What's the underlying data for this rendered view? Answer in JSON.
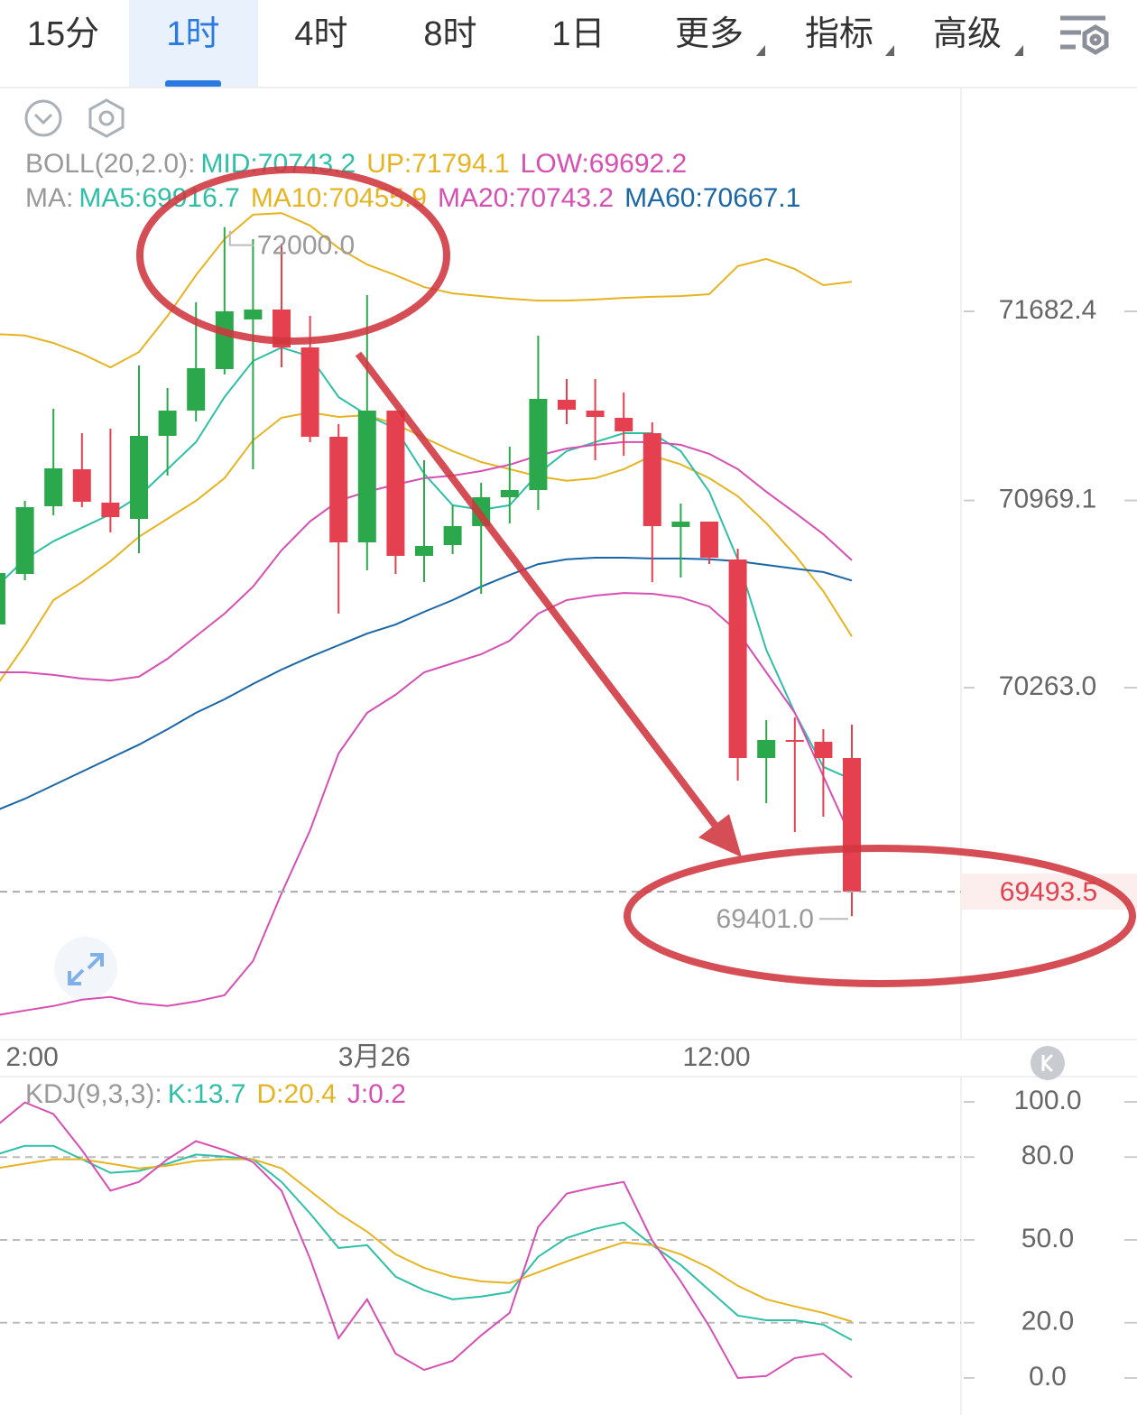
{
  "tabs": {
    "items": [
      "15分",
      "1时",
      "4时",
      "8时",
      "1日",
      "更多",
      "指标",
      "高级"
    ],
    "selected": 1
  },
  "chart_data": [
    {
      "type": "candlestick",
      "categories": [
        null,
        "2:00",
        null,
        null,
        null,
        null,
        null,
        null,
        null,
        null,
        null,
        null,
        null,
        "3月26",
        null,
        null,
        null,
        null,
        null,
        null,
        null,
        null,
        null,
        null,
        null,
        "12:00",
        null,
        null,
        null,
        null,
        null
      ],
      "open": [
        70501.3,
        70691.9,
        70947.2,
        71086.7,
        70960.8,
        70899.5,
        71212.7,
        71308.0,
        71464.5,
        71651.8,
        71689.2,
        71546.2,
        71209.3,
        70811.0,
        71308.0,
        70760.0,
        70800.8,
        70872.3,
        70981.2,
        71008.4,
        71348.8,
        71308.0,
        71280.7,
        71222.9,
        70868.9,
        70889.3,
        70746.3,
        69997.5,
        70065.6,
        70058.8,
        69997.5
      ],
      "high": [
        70695.3,
        70967.6,
        71314.8,
        71222.9,
        71239.9,
        71478.2,
        71393.1,
        71716.4,
        72000.0,
        71954.7,
        71937.7,
        71665.4,
        71256.9,
        71743.7,
        71308.0,
        71120.8,
        70950.6,
        71035.7,
        71171.8,
        71590.5,
        71427.1,
        71427.1,
        71376.0,
        71263.7,
        70957.4,
        70889.3,
        70787.2,
        70140.5,
        70150.7,
        70106.4,
        70123.5
      ],
      "low": [
        70501.3,
        70668.1,
        70913.1,
        70943.7,
        70848.5,
        70770.2,
        71062.9,
        71267.1,
        71444.1,
        71086.7,
        71471.4,
        71188.8,
        70542.1,
        70705.5,
        70691.9,
        70661.2,
        70766.8,
        70617.0,
        70882.5,
        70933.6,
        71256.9,
        71120.8,
        71137.8,
        70661.2,
        70678.3,
        70729.3,
        69912.4,
        69827.3,
        69718.4,
        69776.3,
        69401.0
      ],
      "close": [
        70695.3,
        70943.7,
        71090.1,
        70964.2,
        70906.3,
        71212.7,
        71308.0,
        71468.0,
        71682.4,
        71689.2,
        71546.2,
        71209.3,
        70811.0,
        71308.0,
        70760.0,
        70797.4,
        70872.3,
        70981.2,
        71008.4,
        71352.2,
        71311.4,
        71284.1,
        71229.7,
        70872.3,
        70889.3,
        70753.2,
        69997.5,
        70065.6,
        70058.8,
        69997.5,
        69493.5
      ],
      "up_color": "#2ca84c",
      "down_color": "#e5404f",
      "series": [
        {
          "color": "#e6b422",
          "values": [
            71597,
            71591,
            71563,
            71522,
            71471,
            71529,
            71665,
            71819,
            71955,
            72047,
            72053,
            72006,
            71921,
            71859,
            71819,
            71774,
            71750,
            71740,
            71730,
            71723,
            71723,
            71727,
            71733,
            71737,
            71740,
            71747,
            71853,
            71880,
            71842,
            71781,
            71794.1
          ]
        },
        {
          "color": "#e6b422",
          "values": [
            70270,
            70423,
            70593,
            70661,
            70740,
            70832,
            70900,
            70968,
            71053,
            71196,
            71281,
            71301,
            71284,
            71291,
            71257,
            71206,
            71155,
            71114,
            71087,
            71060,
            71043,
            71053,
            71087,
            71138,
            71105,
            71053,
            70985,
            70883,
            70764,
            70627,
            70455.9
          ]
        },
        {
          "color": "#2fbfa7",
          "values": [
            70644,
            70747,
            70815,
            70866,
            70917,
            70985,
            71087,
            71189,
            71359,
            71495,
            71546,
            71512,
            71359,
            71291,
            71240,
            71070,
            70951,
            70934,
            70951,
            71070,
            71155,
            71189,
            71223,
            71223,
            71155,
            71002,
            70747,
            70406,
            70168,
            69964,
            69916.7
          ]
        },
        {
          "color": "#d64fb3",
          "values": [
            70321,
            70321,
            70311,
            70297,
            70290,
            70304,
            70372,
            70457,
            70542,
            70644,
            70781,
            70890,
            70968,
            71002,
            71029,
            71053,
            71063,
            71080,
            71104,
            71138,
            71165,
            71179,
            71189,
            71189,
            71179,
            71145,
            71087,
            71002,
            70923,
            70842,
            70743.2
          ]
        },
        {
          "color": "#d64fb3",
          "values": [
            69027,
            69045,
            69062,
            69086,
            69096,
            69072,
            69062,
            69079,
            69103,
            69232,
            69487,
            69725,
            70015,
            70168,
            70236,
            70321,
            70355,
            70389,
            70440,
            70542,
            70593,
            70610,
            70620,
            70617,
            70603,
            70569,
            70474,
            70321,
            70168,
            69929,
            69692.2
          ]
        },
        {
          "color": "#1a66a6",
          "values": [
            69800,
            69844,
            69895,
            69946,
            69997,
            70048,
            70106,
            70168,
            70219,
            70277,
            70331,
            70379,
            70423,
            70467,
            70501,
            70549,
            70593,
            70644,
            70688,
            70729,
            70747,
            70753,
            70753,
            70750,
            70750,
            70747,
            70740,
            70726,
            70712,
            70699,
            70667.1
          ]
        }
      ],
      "legend": [
        {
          "label": "BOLL(20,2.0):",
          "items": [
            {
              "text": "MID:70743.2",
              "color": "#2fbfa7"
            },
            {
              "text": "UP:71794.1",
              "color": "#e6b422"
            },
            {
              "text": "LOW:69692.2",
              "color": "#d64fb3"
            }
          ]
        },
        {
          "label": "MA:",
          "items": [
            {
              "text": "MA5:69916.7",
              "color": "#2fbfa7"
            },
            {
              "text": "MA10:70455.9",
              "color": "#e6b422"
            },
            {
              "text": "MA20:70743.2",
              "color": "#d64fb3"
            },
            {
              "text": "MA60:70667.1",
              "color": "#1a66a6"
            }
          ]
        }
      ],
      "ylim": [
        68942.3,
        72516.3
      ],
      "yticks": [
        71682.4,
        70969.1,
        {
          "value": 70263.0,
          "label": "70263.0"
        }
      ],
      "high_mark": {
        "value": 72000.0,
        "label": "72000.0",
        "index": 8
      },
      "low_mark": {
        "value": 69401.0,
        "label": "69401.0",
        "index": 30
      },
      "last_price": {
        "value": 69493.5,
        "label": "69493.5"
      }
    },
    {
      "type": "line",
      "legend": {
        "label": "KDJ(9,3,3):",
        "items": [
          {
            "text": "K:13.7",
            "color": "#2fbfa7"
          },
          {
            "text": "D:20.4",
            "color": "#e6b422"
          },
          {
            "text": "J:0.2",
            "color": "#d64fb3"
          }
        ]
      },
      "series": [
        {
          "color": "#2fbfa7",
          "values": [
            80.9,
            84.1,
            84.1,
            79.2,
            74.3,
            75.0,
            77.6,
            80.9,
            80.2,
            79.2,
            71.0,
            59.6,
            47.1,
            48.1,
            36.7,
            31.8,
            28.5,
            29.5,
            31.1,
            43.9,
            50.7,
            54.0,
            56.3,
            48.1,
            40.9,
            31.8,
            22.6,
            20.9,
            20.9,
            19.3,
            13.7
          ]
        },
        {
          "color": "#e6b422",
          "values": [
            75.9,
            77.6,
            79.2,
            79.2,
            77.6,
            75.9,
            76.9,
            78.6,
            79.2,
            79.2,
            75.9,
            67.8,
            59.6,
            53.0,
            44.8,
            39.9,
            36.7,
            35.0,
            34.4,
            38.3,
            42.2,
            45.8,
            49.1,
            48.1,
            44.8,
            39.9,
            33.4,
            28.5,
            25.9,
            23.6,
            20.4
          ]
        },
        {
          "color": "#d64fb3",
          "values": [
            91.3,
            99.8,
            95.6,
            82.5,
            67.8,
            71.0,
            79.2,
            85.8,
            82.5,
            78.2,
            67.8,
            43.2,
            14.4,
            28.5,
            8.8,
            2.9,
            6.2,
            15.4,
            23.6,
            54.7,
            66.8,
            69.1,
            71.0,
            49.8,
            35.0,
            18.7,
            0.0,
            0.7,
            7.2,
            8.8,
            0.2
          ]
        }
      ],
      "ylim": [
        -10.8,
        108.5
      ],
      "yticks": [
        {
          "value": 100,
          "label": "100.0"
        },
        {
          "value": 80,
          "label": "80.0"
        },
        {
          "value": 50,
          "label": "50.0"
        },
        {
          "value": 20,
          "label": "20.0"
        },
        {
          "value": 0,
          "label": "0.0"
        }
      ],
      "grid": "dashed"
    }
  ]
}
